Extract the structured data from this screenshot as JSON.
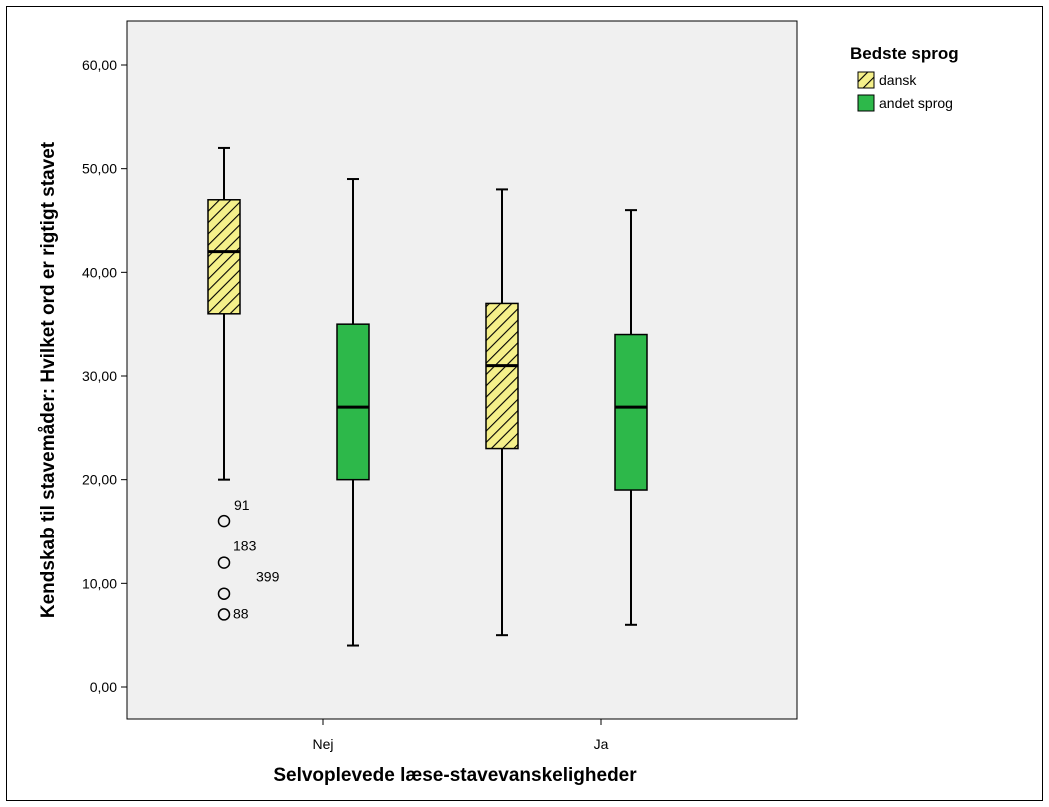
{
  "chart_data": {
    "type": "boxplot",
    "title": "",
    "xlabel": "Selvoplevede læse-stavevanskeligheder",
    "ylabel": "Kendskab til stavemåder: Hvilket ord er rigtigt stavet",
    "ylim": [
      -3,
      65
    ],
    "yticks": [
      0,
      10,
      20,
      30,
      40,
      50,
      60
    ],
    "ytick_labels": [
      "0,00",
      "10,00",
      "20,00",
      "30,00",
      "40,00",
      "50,00",
      "60,00"
    ],
    "categories": [
      "Nej",
      "Ja"
    ],
    "grid": false,
    "legend": {
      "title": "Bedste sprog",
      "placement": "right",
      "entries": [
        "dansk",
        "andet sprog"
      ]
    },
    "series": [
      {
        "name": "dansk",
        "color": "#f5f08a",
        "pattern": "diagonal-hatch",
        "boxes": [
          {
            "category": "Nej",
            "whisker_low": 20,
            "q1": 36,
            "median": 42,
            "q3": 47,
            "whisker_high": 52,
            "outliers": [
              {
                "value": 16,
                "label": "91"
              },
              {
                "value": 12,
                "label": "183"
              },
              {
                "value": 9,
                "label": "399"
              },
              {
                "value": 7,
                "label": "88"
              }
            ]
          },
          {
            "category": "Ja",
            "whisker_low": 5,
            "q1": 23,
            "median": 31,
            "q3": 37,
            "whisker_high": 48,
            "outliers": []
          }
        ]
      },
      {
        "name": "andet sprog",
        "color": "#2db84a",
        "pattern": "solid",
        "boxes": [
          {
            "category": "Nej",
            "whisker_low": 4,
            "q1": 20,
            "median": 27,
            "q3": 35,
            "whisker_high": 49,
            "outliers": []
          },
          {
            "category": "Ja",
            "whisker_low": 6,
            "q1": 19,
            "median": 27,
            "q3": 34,
            "whisker_high": 46,
            "outliers": []
          }
        ]
      }
    ]
  }
}
